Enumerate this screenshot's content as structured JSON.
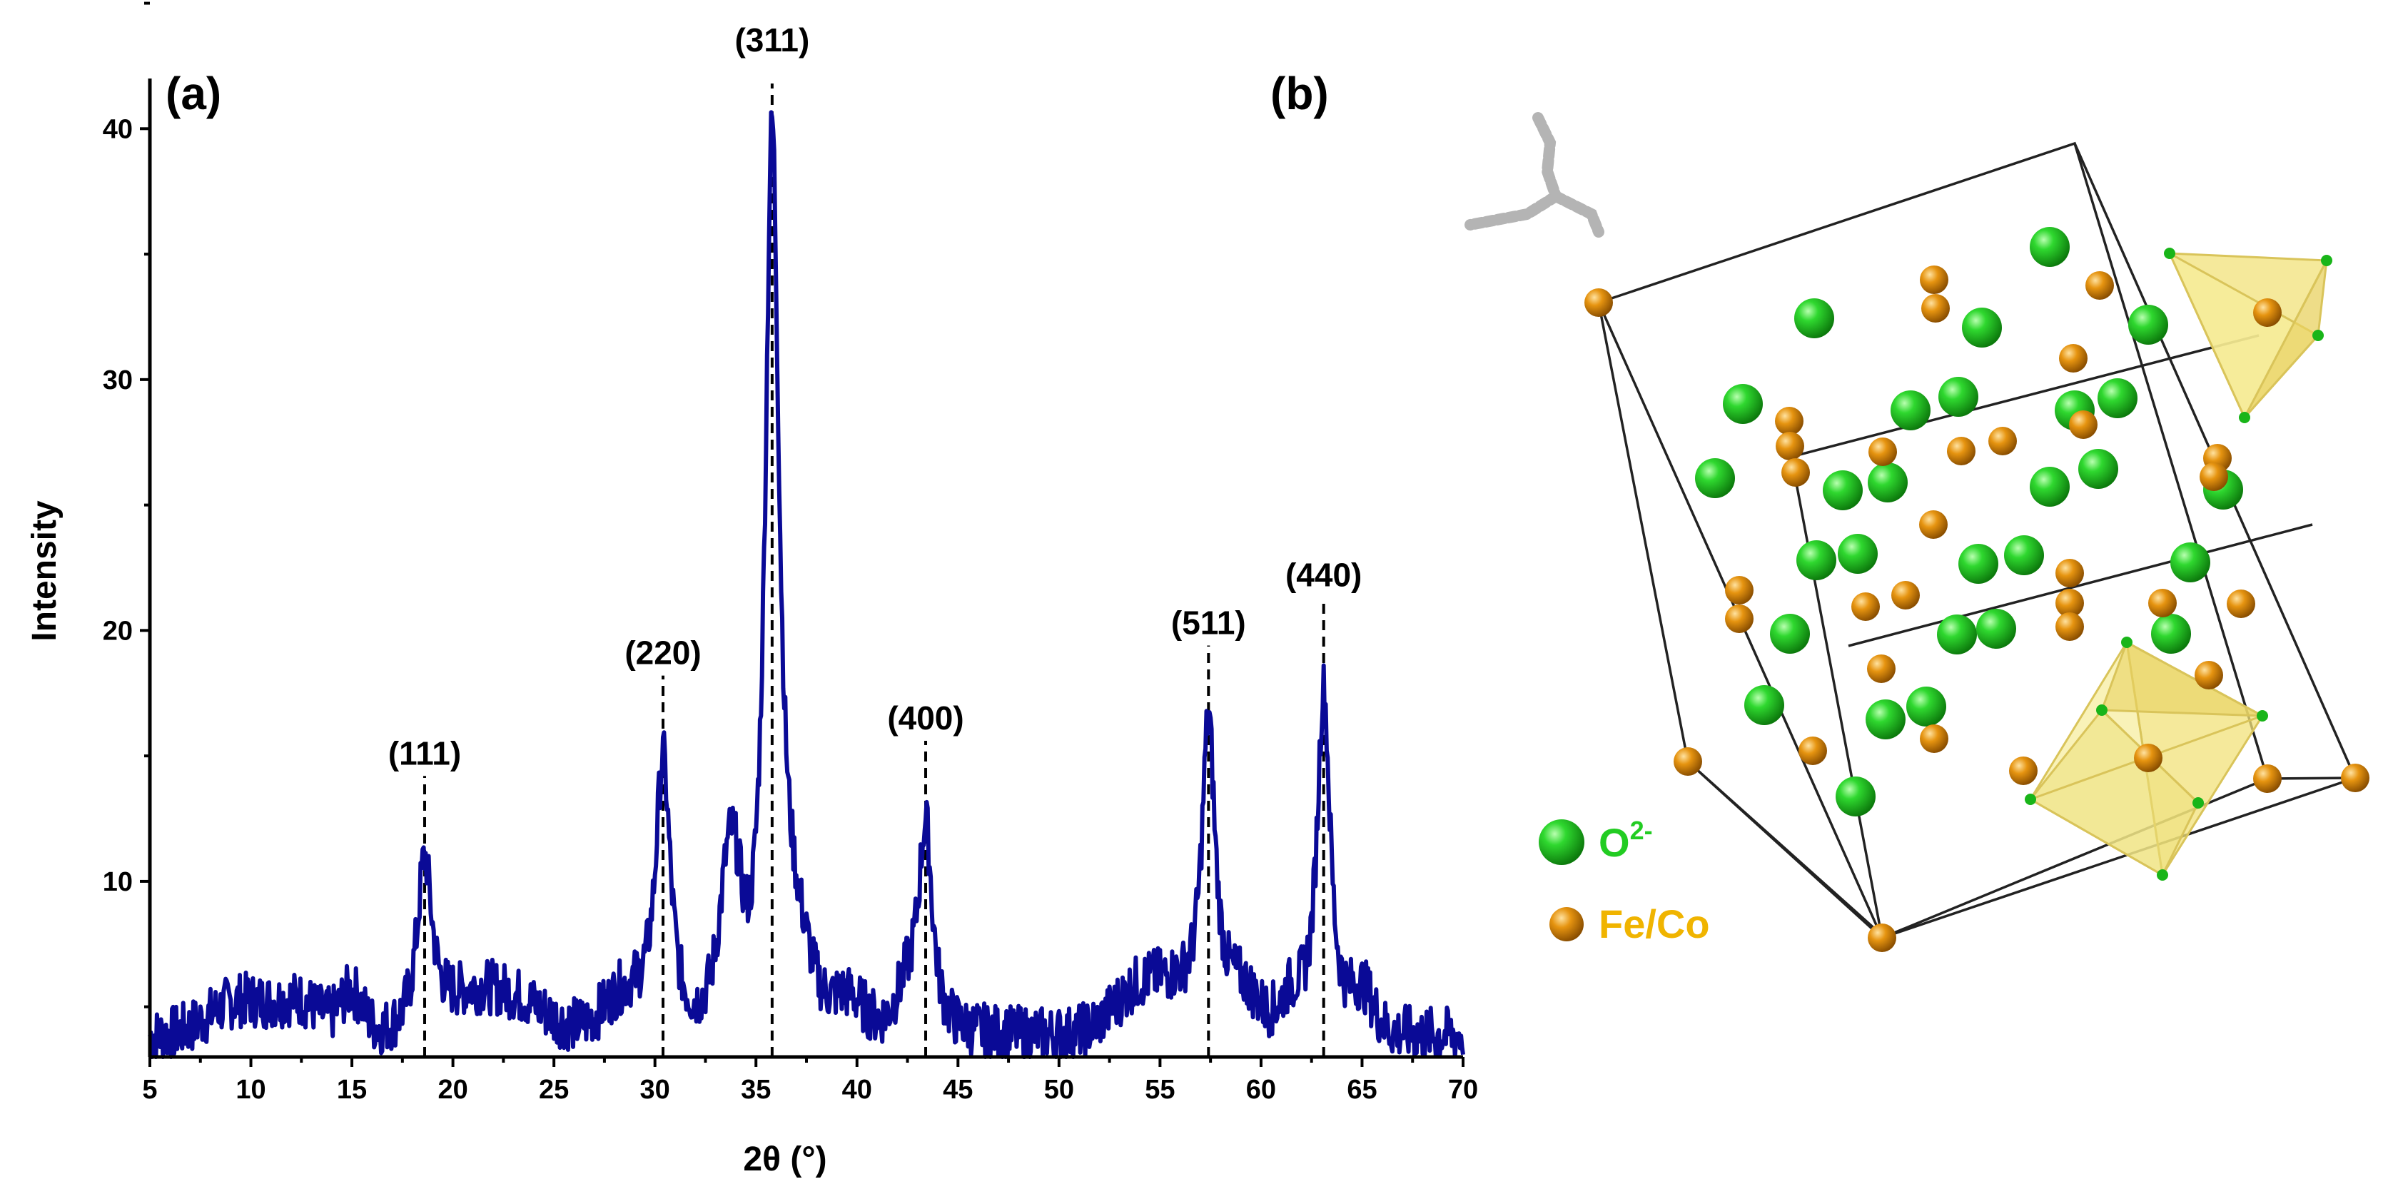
{
  "chart_data": {
    "type": "line",
    "panel_label": "(a)",
    "xlabel": "2θ (°)",
    "ylabel": "Intensity",
    "xlim": [
      5,
      70
    ],
    "ylim": [
      3,
      42
    ],
    "x_ticks": [
      5,
      10,
      15,
      20,
      25,
      30,
      35,
      40,
      45,
      50,
      55,
      60,
      65,
      70
    ],
    "y_ticks": [
      10,
      20,
      30,
      40
    ],
    "line_color": "#0a0a96",
    "peaks": [
      {
        "label": "(111)",
        "x": 18.6,
        "height": 11.2
      },
      {
        "label": "(220)",
        "x": 30.4,
        "height": 15.2
      },
      {
        "label": "(311)",
        "x": 35.8,
        "height": 40.3
      },
      {
        "label": "(400)",
        "x": 43.4,
        "height": 12.6
      },
      {
        "label": "(511)",
        "x": 57.4,
        "height": 16.4
      },
      {
        "label": "(440)",
        "x": 63.1,
        "height": 18.3
      }
    ]
  },
  "structure": {
    "panel_label": "(b)",
    "legend": [
      {
        "symbol": "O2-",
        "base": "O",
        "sup": "2-",
        "color": "#22cc22"
      },
      {
        "symbol": "Fe/Co",
        "base": "Fe/Co",
        "sup": "",
        "color": "#f0b400"
      }
    ],
    "atom_colors": {
      "oxygen": "#1fc41f",
      "metal": "#e08a00",
      "polyhedron": "#f2e27a"
    }
  }
}
